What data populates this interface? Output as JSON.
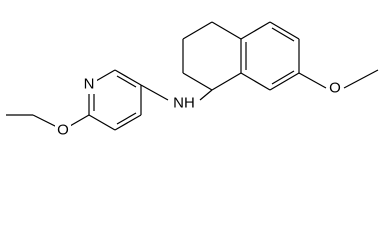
{
  "labels": {
    "pyridine_n": "N",
    "amine": "NH",
    "left_o": "O",
    "right_o": "O"
  }
}
